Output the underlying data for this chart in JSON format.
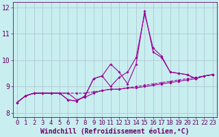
{
  "xlabel": "Windchill (Refroidissement éolien,°C)",
  "x": [
    0,
    1,
    2,
    3,
    4,
    5,
    6,
    7,
    8,
    9,
    10,
    11,
    12,
    13,
    14,
    15,
    16,
    17,
    18,
    19,
    20,
    21,
    22,
    23
  ],
  "line1": [
    8.4,
    8.65,
    8.75,
    8.75,
    8.75,
    8.75,
    8.75,
    8.75,
    8.75,
    8.8,
    8.85,
    8.9,
    8.9,
    8.95,
    9.0,
    9.05,
    9.1,
    9.15,
    9.2,
    9.25,
    9.3,
    9.35,
    9.4,
    9.45
  ],
  "line2": [
    8.4,
    8.65,
    8.75,
    8.75,
    8.75,
    8.75,
    8.75,
    8.5,
    8.6,
    8.75,
    8.85,
    8.9,
    8.9,
    8.95,
    8.95,
    9.0,
    9.05,
    9.1,
    9.15,
    9.2,
    9.25,
    9.3,
    9.4,
    9.45
  ],
  "line3": [
    8.4,
    8.65,
    8.75,
    8.75,
    8.75,
    8.75,
    8.5,
    8.45,
    8.65,
    9.3,
    9.4,
    9.85,
    9.55,
    9.1,
    9.85,
    11.85,
    10.3,
    10.1,
    9.55,
    9.5,
    9.45,
    9.3,
    9.4,
    9.45
  ],
  "line4": [
    8.4,
    8.65,
    8.75,
    8.75,
    8.75,
    8.75,
    8.5,
    8.45,
    8.65,
    9.3,
    9.4,
    9.0,
    9.35,
    9.55,
    10.1,
    11.75,
    10.45,
    10.15,
    9.55,
    9.5,
    9.45,
    9.3,
    9.4,
    9.45
  ],
  "ylim": [
    7.85,
    12.2
  ],
  "xlim": [
    -0.5,
    23.5
  ],
  "yticks": [
    8,
    9,
    10,
    11,
    12
  ],
  "line_color": "#990099",
  "bg_color": "#c8eef0",
  "grid_color": "#b0c8d0",
  "axis_color": "#660066",
  "tick_label_color": "#660066",
  "tick_fontsize": 6.5,
  "xlabel_fontsize": 7.0
}
